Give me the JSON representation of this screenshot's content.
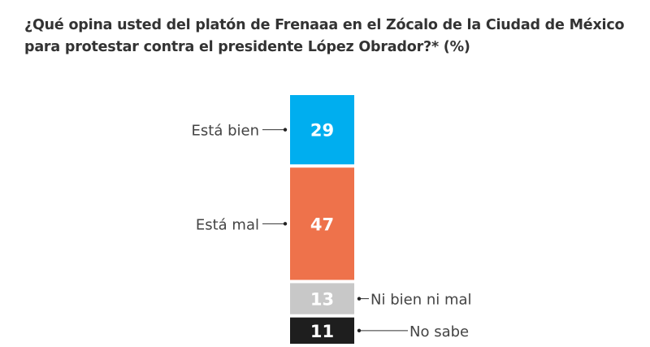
{
  "chart_data": {
    "type": "bar",
    "subtype": "stacked-100-single-column",
    "title": "¿Qué opina usted del platón de Frenaaa en el Zócalo de la Ciudad de México para protestar contra el presidente López Obrador?* (%)",
    "unit": "%",
    "categories": [
      "Está bien",
      "Está mal",
      "Ni bien ni mal",
      "No sabe"
    ],
    "values": [
      29,
      47,
      13,
      11
    ],
    "colors": [
      "#00AEEF",
      "#EE724B",
      "#C8C8C8",
      "#1E1E1E"
    ],
    "label_colors": [
      "#ffffff",
      "#ffffff",
      "#ffffff",
      "#ffffff"
    ],
    "label_side": [
      "left",
      "left",
      "right",
      "right"
    ],
    "xlabel": "",
    "ylabel": "",
    "grid": false,
    "legend": "none"
  }
}
